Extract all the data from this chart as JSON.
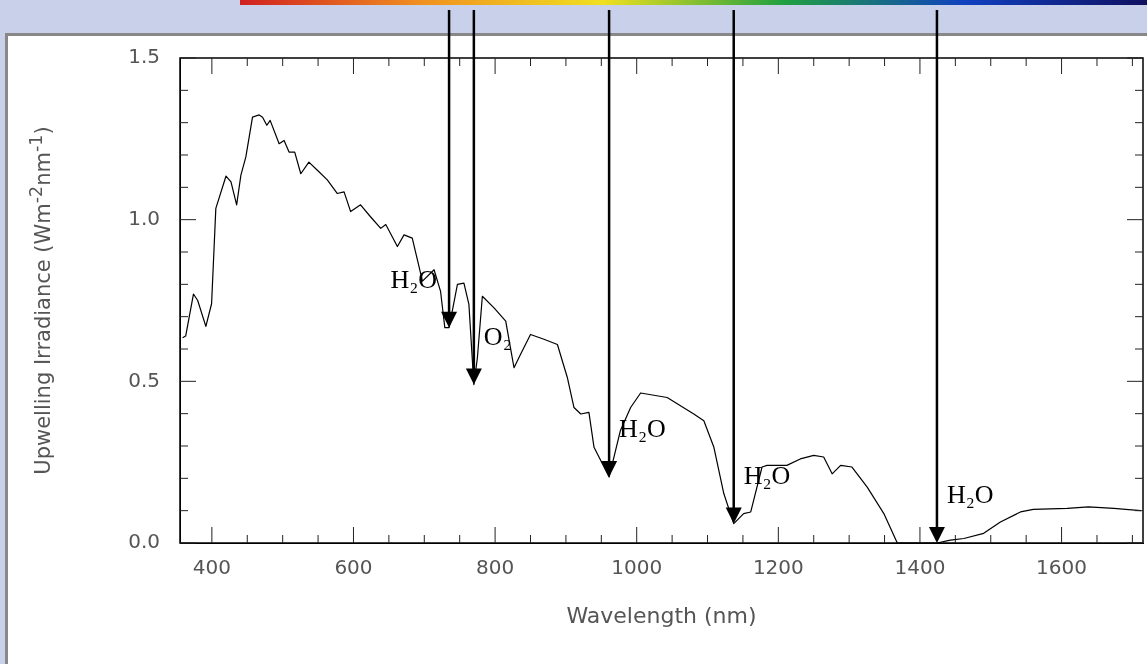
{
  "chart_data": {
    "type": "line",
    "xlabel": "Wavelength (nm)",
    "ylabel": "Upwelling Irradiance (Wm$^{-2}$nm$^{-1}$)",
    "x": [
      358.6,
      363,
      374,
      380,
      391.5,
      399.6,
      405.6,
      420,
      427,
      435,
      441,
      448,
      457.4,
      466.8,
      471.6,
      477.6,
      482.3,
      495,
      502,
      509,
      517,
      525.6,
      537,
      549,
      563,
      577,
      586.7,
      596,
      610,
      624,
      638.5,
      645.6,
      662,
      671.4,
      683,
      697.4,
      713.8,
      723,
      729,
      735,
      746.8,
      756,
      763,
      770,
      775,
      782,
      798.5,
      815,
      826.7,
      836,
      850,
      869,
      888,
      902,
      911.4,
      921,
      932.5,
      939.7,
      961,
      977,
      991.4,
      1005.5,
      1043,
      1080.6,
      1094.8,
      1109,
      1123,
      1137,
      1151,
      1161,
      1177,
      1184,
      1212,
      1231,
      1250,
      1264,
      1276,
      1288,
      1304,
      1325.5,
      1349,
      1368,
      1424,
      1443,
      1462,
      1490,
      1513.6,
      1542,
      1560,
      1608,
      1638,
      1674,
      1712
    ],
    "series": [
      {
        "color": "#000000",
        "values": [
          0.635,
          0.64,
          0.77,
          0.75,
          0.67,
          0.74,
          1.035,
          1.135,
          1.117,
          1.046,
          1.138,
          1.194,
          1.317,
          1.324,
          1.317,
          1.292,
          1.307,
          1.235,
          1.245,
          1.209,
          1.209,
          1.142,
          1.178,
          1.153,
          1.123,
          1.081,
          1.086,
          1.025,
          1.046,
          1.009,
          0.973,
          0.985,
          0.917,
          0.953,
          0.943,
          0.81,
          0.845,
          0.778,
          0.666,
          0.666,
          0.8,
          0.804,
          0.738,
          0.49,
          0.573,
          0.763,
          0.727,
          0.686,
          0.542,
          0.584,
          0.645,
          0.63,
          0.614,
          0.512,
          0.419,
          0.399,
          0.404,
          0.296,
          0.204,
          0.348,
          0.419,
          0.464,
          0.45,
          0.399,
          0.378,
          0.296,
          0.153,
          0.06,
          0.091,
          0.096,
          0.235,
          0.24,
          0.24,
          0.26,
          0.271,
          0.266,
          0.214,
          0.24,
          0.235,
          0.173,
          0.091,
          0,
          0,
          0.009,
          0.014,
          0.03,
          0.065,
          0.096,
          0.104,
          0.107,
          0.112,
          0.107,
          0.1
        ]
      }
    ],
    "xlim": [
      355,
      1715
    ],
    "ylim": [
      0,
      1.5
    ],
    "xticks": [
      400,
      {
        "value": 450,
        "label": null
      },
      {
        "value": 500,
        "label": null
      },
      {
        "value": 550,
        "label": null
      },
      600,
      {
        "value": 650,
        "label": null
      },
      {
        "value": 700,
        "label": null
      },
      {
        "value": 750,
        "label": null
      },
      800,
      {
        "value": 850,
        "label": null
      },
      {
        "value": 900,
        "label": null
      },
      {
        "value": 950,
        "label": null
      },
      1000,
      {
        "value": 1050,
        "label": null
      },
      {
        "value": 1100,
        "label": null
      },
      {
        "value": 1150,
        "label": null
      },
      1200,
      {
        "value": 1250,
        "label": null
      },
      {
        "value": 1300,
        "label": null
      },
      {
        "value": 1350,
        "label": null
      },
      1400,
      {
        "value": 1450,
        "label": null
      },
      {
        "value": 1500,
        "label": null
      },
      {
        "value": 1550,
        "label": null
      },
      1600,
      {
        "value": 1650,
        "label": null
      },
      {
        "value": 1700,
        "label": null
      }
    ],
    "yticks": [
      {
        "value": 0,
        "label": "0.0"
      },
      {
        "value": 0.1,
        "label": null
      },
      {
        "value": 0.2,
        "label": null
      },
      {
        "value": 0.3,
        "label": null
      },
      {
        "value": 0.4,
        "label": null
      },
      {
        "value": 0.5,
        "label": "0.5"
      },
      {
        "value": 0.6,
        "label": null
      },
      {
        "value": 0.7,
        "label": null
      },
      {
        "value": 0.8,
        "label": null
      },
      {
        "value": 0.9,
        "label": null
      },
      {
        "value": 1,
        "label": "1.0"
      },
      {
        "value": 1.1,
        "label": null
      },
      {
        "value": 1.2,
        "label": null
      },
      {
        "value": 1.3,
        "label": null
      },
      {
        "value": 1.4,
        "label": null
      },
      {
        "value": 1.5,
        "label": "1.5"
      }
    ],
    "annotations": [
      {
        "text": "H₂O",
        "x": 735,
        "y": 0.666
      },
      {
        "text": "O₂",
        "x": 770,
        "y": 0.49
      },
      {
        "text": "H₂O",
        "x": 961,
        "y": 0.204
      },
      {
        "text": "H₂O",
        "x": 1137,
        "y": 0.06
      },
      {
        "text": "H₂O",
        "x": 1424,
        "y": 0
      }
    ],
    "legend": false,
    "marker": "none",
    "line_style": "solid"
  }
}
